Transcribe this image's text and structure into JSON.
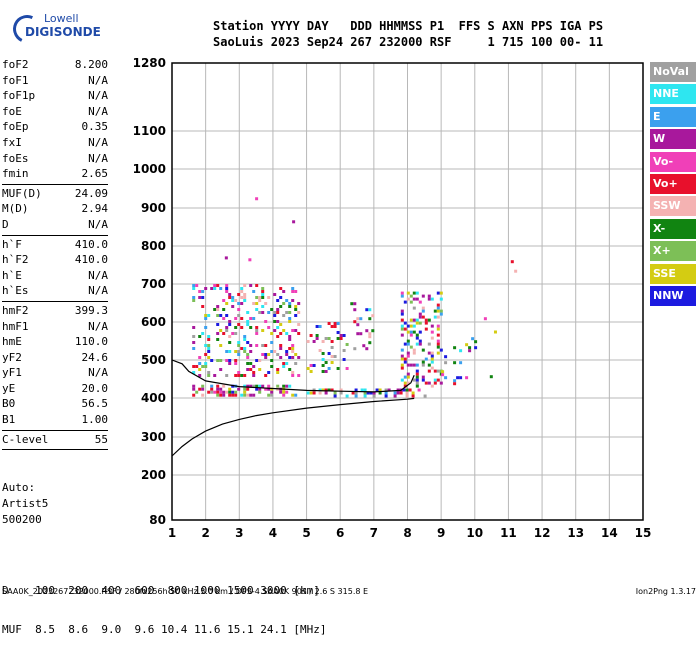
{
  "logo": {
    "line1": "Lowell",
    "line2": "DIGISONDE"
  },
  "header": {
    "line1": "Station YYYY DAY   DDD HHMMSS P1  FFS S AXN PPS IGA PS",
    "line2": "SaoLuis 2023 Sep24 267 232000 RSF     1 715 100 00- 11"
  },
  "params": {
    "group1": [
      {
        "name": "foF2",
        "value": "8.200"
      },
      {
        "name": "foF1",
        "value": "N/A"
      },
      {
        "name": "foF1p",
        "value": "N/A"
      },
      {
        "name": "foE",
        "value": "N/A"
      },
      {
        "name": "foEp",
        "value": "0.35"
      },
      {
        "name": "fxI",
        "value": "N/A"
      },
      {
        "name": "foEs",
        "value": "N/A"
      },
      {
        "name": "fmin",
        "value": "2.65"
      }
    ],
    "group2": [
      {
        "name": "MUF(D)",
        "value": "24.09"
      },
      {
        "name": "M(D)",
        "value": "2.94"
      },
      {
        "name": "D",
        "value": "N/A"
      }
    ],
    "group3": [
      {
        "name": "h`F",
        "value": "410.0"
      },
      {
        "name": "h`F2",
        "value": "410.0"
      },
      {
        "name": "h`E",
        "value": "N/A"
      },
      {
        "name": "h`Es",
        "value": "N/A"
      }
    ],
    "group4": [
      {
        "name": "hmF2",
        "value": "399.3"
      },
      {
        "name": "hmF1",
        "value": "N/A"
      },
      {
        "name": "hmE",
        "value": "110.0"
      },
      {
        "name": "yF2",
        "value": "24.6"
      },
      {
        "name": "yF1",
        "value": "N/A"
      },
      {
        "name": "yE",
        "value": "20.0"
      },
      {
        "name": "B0",
        "value": "56.5"
      },
      {
        "name": "B1",
        "value": "1.00"
      }
    ],
    "group5": [
      {
        "name": "C-level",
        "value": "55"
      }
    ]
  },
  "auto": {
    "line1": "Auto:",
    "line2": "Artist5",
    "line3": "500200"
  },
  "legend": [
    {
      "label": "NoVal",
      "color": "#a0a0a0"
    },
    {
      "label": "NNE",
      "color": "#2ee6f0"
    },
    {
      "label": "E",
      "color": "#3ba0ee"
    },
    {
      "label": "W",
      "color": "#a8189c"
    },
    {
      "label": "Vo-",
      "color": "#f040b8"
    },
    {
      "label": "Vo+",
      "color": "#e8102c"
    },
    {
      "label": "SSW",
      "color": "#f4b2b2"
    },
    {
      "label": "X-",
      "color": "#118411"
    },
    {
      "label": "X+",
      "color": "#7dbf57"
    },
    {
      "label": "SSE",
      "color": "#d4cc12"
    },
    {
      "label": "NNW",
      "color": "#1c1ae0"
    }
  ],
  "muf_table": {
    "d_line": "D    100  200  400  600  800 1000 1500 3000 [km]",
    "muf_line": "MUF  8.5  8.6  9.0  9.6 10.4 11.6 15.1 24.1 [MHz]"
  },
  "footer": {
    "left": "SAA0K_2023267232000.RSF / 280fx256h 50 kHz 5.0 km / DPS-4 SAA0K 903 / 2.6 S 315.8 E",
    "right": "Ion2Png 1.3.17"
  },
  "chart_data": {
    "type": "scatter",
    "title": "",
    "xlabel": "",
    "ylabel": "",
    "xlim": [
      1,
      15
    ],
    "ylim": [
      80,
      1280
    ],
    "x_ticks": [
      1,
      2,
      3,
      4,
      5,
      6,
      7,
      8,
      9,
      10,
      11,
      12,
      13,
      14,
      15
    ],
    "y_ticks": [
      80,
      200,
      300,
      400,
      500,
      600,
      700,
      800,
      900,
      1000,
      1100,
      1280
    ],
    "y_scale": "nonlinear (ionogram virtual height)",
    "grid": true,
    "legend_position": "right",
    "profile_curve": {
      "x": [
        1.0,
        1.3,
        1.6,
        2.0,
        2.5,
        3.0,
        3.5,
        4.0,
        5.0,
        6.0,
        7.0,
        8.0,
        8.2
      ],
      "y": [
        250,
        275,
        295,
        315,
        333,
        345,
        355,
        362,
        374,
        383,
        391,
        397,
        399
      ]
    },
    "trace_curve": {
      "x": [
        1.0,
        1.3,
        1.5,
        2.0,
        3.0,
        4.0,
        5.0,
        6.0,
        7.0,
        7.8,
        8.1,
        8.2
      ],
      "y": [
        500,
        490,
        470,
        445,
        430,
        425,
        420,
        418,
        416,
        420,
        440,
        460
      ]
    },
    "echo_clusters": [
      {
        "x": [
          1.6,
          4.7
        ],
        "y": [
          410,
          435
        ],
        "density": 0.55
      },
      {
        "x": [
          1.6,
          4.8
        ],
        "y": [
          460,
          700
        ],
        "density": 0.22
      },
      {
        "x": [
          5.0,
          6.2
        ],
        "y": [
          470,
          600
        ],
        "density": 0.2
      },
      {
        "x": [
          6.3,
          7.0
        ],
        "y": [
          530,
          660
        ],
        "density": 0.15
      },
      {
        "x": [
          7.8,
          9.0
        ],
        "y": [
          430,
          680
        ],
        "density": 0.3
      },
      {
        "x": [
          5.0,
          8.5
        ],
        "y": [
          405,
          425
        ],
        "density": 0.45
      },
      {
        "x": [
          9.0,
          10.0
        ],
        "y": [
          440,
          560
        ],
        "density": 0.08
      },
      {
        "x": [
          10.0,
          11.3
        ],
        "y": [
          440,
          460
        ],
        "density": 0.06
      }
    ],
    "scattered_points": [
      {
        "x": 3.5,
        "y": 925
      },
      {
        "x": 4.6,
        "y": 865
      },
      {
        "x": 3.3,
        "y": 765
      },
      {
        "x": 11.1,
        "y": 760
      },
      {
        "x": 11.2,
        "y": 735
      },
      {
        "x": 2.6,
        "y": 770
      },
      {
        "x": 10.3,
        "y": 610
      },
      {
        "x": 10.6,
        "y": 575
      }
    ]
  }
}
